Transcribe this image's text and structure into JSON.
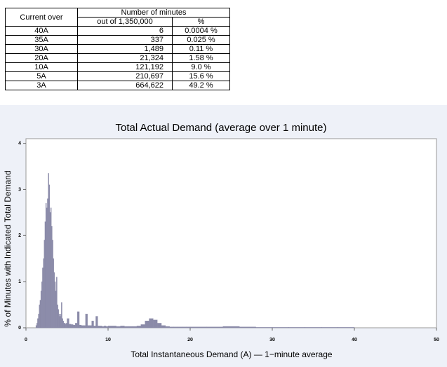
{
  "table": {
    "header": [
      "Current over",
      "Number of minutes"
    ],
    "subheader": [
      "out of 1,350,000",
      "%"
    ],
    "rows": [
      [
        "40A",
        "6",
        "0.0004 %"
      ],
      [
        "35A",
        "337",
        "0.025 %"
      ],
      [
        "30A",
        "1,489",
        "0.11 %"
      ],
      [
        "20A",
        "21,324",
        "1.58 %"
      ],
      [
        "10A",
        "121,192",
        "9.0 %"
      ],
      [
        "5A",
        "210,697",
        "15.6 %"
      ],
      [
        "3A",
        "664,622",
        "49.2 %"
      ]
    ]
  },
  "chart_data": {
    "type": "histogram",
    "title": "Total Actual Demand (average over 1 minute)",
    "xlabel": "Total Instantaneous Demand (A) — 1−minute average",
    "ylabel": "% of Minutes with Indicated Total Demand",
    "color": "#8a8aa8",
    "xlim": [
      0,
      50
    ],
    "xticks": [
      0,
      10,
      20,
      30,
      40,
      50
    ],
    "ylim": [
      0,
      4.1
    ],
    "yticks": [
      0,
      1,
      2,
      3,
      4
    ],
    "bins": [
      1.0,
      1.1,
      1.2,
      1.3,
      1.4,
      1.5,
      1.6,
      1.7,
      1.8,
      1.9,
      2.0,
      2.1,
      2.2,
      2.3,
      2.4,
      2.5,
      2.6,
      2.7,
      2.8,
      2.9,
      3.0,
      3.1,
      3.2,
      3.3,
      3.4,
      3.5,
      3.6,
      3.7,
      3.8,
      3.9,
      4.0,
      4.1,
      4.2,
      4.3,
      4.4,
      4.5,
      4.6,
      4.7,
      4.8,
      4.9,
      5.0,
      5.25,
      5.5,
      5.75,
      6.0,
      6.25,
      6.5,
      6.75,
      7.0,
      7.25,
      7.5,
      7.75,
      8.0,
      8.25,
      8.5,
      8.75,
      9.0,
      9.25,
      9.5,
      9.75,
      10.0,
      10.5,
      11,
      11.5,
      12,
      12.5,
      13,
      13.5,
      14,
      14.5,
      15,
      15.5,
      16,
      16.5,
      17,
      17.5,
      18,
      18.5,
      19,
      19.5,
      20,
      22,
      24,
      26,
      28,
      30,
      32,
      34,
      36,
      38,
      40
    ],
    "values": [
      0,
      0,
      0.05,
      0.1,
      0.2,
      0.3,
      0.5,
      0.6,
      0.8,
      1.0,
      1.3,
      1.5,
      1.9,
      2.3,
      2.7,
      2.6,
      2.8,
      3.35,
      3.1,
      2.5,
      2.6,
      2.2,
      1.9,
      1.5,
      1.2,
      1.0,
      0.8,
      1.1,
      0.5,
      0.4,
      0.3,
      0.25,
      0.3,
      0.55,
      0.2,
      0.15,
      0.1,
      0.1,
      0.08,
      0.1,
      0.2,
      0.08,
      0.07,
      0.06,
      0.1,
      0.35,
      0.06,
      0.05,
      0.05,
      0.3,
      0.05,
      0.05,
      0.15,
      0.04,
      0.25,
      0.04,
      0.04,
      0.03,
      0.04,
      0.03,
      0.04,
      0.04,
      0.03,
      0.04,
      0.03,
      0.03,
      0.03,
      0.04,
      0.07,
      0.15,
      0.2,
      0.17,
      0.1,
      0.05,
      0.03,
      0.02,
      0.02,
      0.02,
      0.02,
      0.02,
      0.02,
      0.02,
      0.03,
      0.02,
      0.01,
      0.01,
      0.01,
      0.01,
      0.01,
      0.01
    ]
  }
}
